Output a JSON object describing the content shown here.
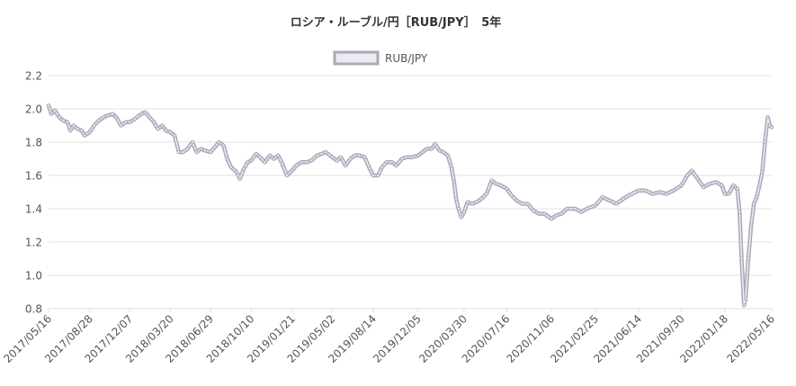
{
  "chart_data": {
    "type": "line",
    "title": "ロシア・ルーブル/円［RUB/JPY］　5年",
    "legend": {
      "position": "top-center",
      "entries": [
        "RUB/JPY"
      ]
    },
    "grid": true,
    "colors": {
      "line": "#a9a9b9",
      "line_fill": "#ecebf4",
      "grid": "#e0e0e0",
      "text": "#555555"
    },
    "xlim": [
      "2017/05/16",
      "2022/05/16"
    ],
    "ylim": [
      0.8,
      2.2
    ],
    "y_ticks": [
      "0.8",
      "1.0",
      "1.2",
      "1.4",
      "1.6",
      "1.8",
      "2.0",
      "2.2"
    ],
    "x_ticks": [
      "2017/05/16",
      "2017/08/28",
      "2017/12/07",
      "2018/03/20",
      "2018/06/29",
      "2018/10/10",
      "2019/01/21",
      "2019/05/02",
      "2019/08/14",
      "2019/12/05",
      "2020/03/30",
      "2020/07/16",
      "2020/11/06",
      "2021/02/25",
      "2021/06/14",
      "2021/09/30",
      "2022/01/18",
      "2022/05/16"
    ],
    "series": [
      {
        "name": "RUB/JPY",
        "points": [
          [
            "2017/05/16",
            2.02
          ],
          [
            "2017/05/23",
            1.97
          ],
          [
            "2017/06/01",
            1.99
          ],
          [
            "2017/06/12",
            1.95
          ],
          [
            "2017/06/22",
            1.93
          ],
          [
            "2017/07/03",
            1.92
          ],
          [
            "2017/07/10",
            1.87
          ],
          [
            "2017/07/18",
            1.9
          ],
          [
            "2017/07/28",
            1.88
          ],
          [
            "2017/08/07",
            1.87
          ],
          [
            "2017/08/15",
            1.84
          ],
          [
            "2017/08/28",
            1.86
          ],
          [
            "2017/09/08",
            1.9
          ],
          [
            "2017/09/20",
            1.93
          ],
          [
            "2017/10/02",
            1.95
          ],
          [
            "2017/10/13",
            1.96
          ],
          [
            "2017/10/25",
            1.97
          ],
          [
            "2017/11/03",
            1.95
          ],
          [
            "2017/11/15",
            1.9
          ],
          [
            "2017/11/27",
            1.92
          ],
          [
            "2017/12/07",
            1.92
          ],
          [
            "2017/12/20",
            1.94
          ],
          [
            "2018/01/05",
            1.97
          ],
          [
            "2018/01/15",
            1.98
          ],
          [
            "2018/01/26",
            1.95
          ],
          [
            "2018/02/06",
            1.92
          ],
          [
            "2018/02/16",
            1.88
          ],
          [
            "2018/02/27",
            1.9
          ],
          [
            "2018/03/08",
            1.87
          ],
          [
            "2018/03/20",
            1.86
          ],
          [
            "2018/03/30",
            1.84
          ],
          [
            "2018/04/10",
            1.74
          ],
          [
            "2018/04/20",
            1.74
          ],
          [
            "2018/05/02",
            1.76
          ],
          [
            "2018/05/14",
            1.8
          ],
          [
            "2018/05/25",
            1.74
          ],
          [
            "2018/06/05",
            1.76
          ],
          [
            "2018/06/15",
            1.75
          ],
          [
            "2018/06/29",
            1.74
          ],
          [
            "2018/07/10",
            1.77
          ],
          [
            "2018/07/20",
            1.8
          ],
          [
            "2018/08/01",
            1.78
          ],
          [
            "2018/08/10",
            1.7
          ],
          [
            "2018/08/20",
            1.65
          ],
          [
            "2018/09/03",
            1.62
          ],
          [
            "2018/09/11",
            1.58
          ],
          [
            "2018/09/21",
            1.64
          ],
          [
            "2018/10/01",
            1.68
          ],
          [
            "2018/10/10",
            1.69
          ],
          [
            "2018/10/22",
            1.73
          ],
          [
            "2018/11/01",
            1.71
          ],
          [
            "2018/11/13",
            1.68
          ],
          [
            "2018/11/26",
            1.72
          ],
          [
            "2018/12/06",
            1.7
          ],
          [
            "2018/12/17",
            1.72
          ],
          [
            "2018/12/27",
            1.67
          ],
          [
            "2019/01/08",
            1.6
          ],
          [
            "2019/01/21",
            1.63
          ],
          [
            "2019/02/01",
            1.66
          ],
          [
            "2019/02/14",
            1.68
          ],
          [
            "2019/02/27",
            1.68
          ],
          [
            "2019/03/11",
            1.69
          ],
          [
            "2019/03/25",
            1.72
          ],
          [
            "2019/04/05",
            1.73
          ],
          [
            "2019/04/16",
            1.74
          ],
          [
            "2019/05/02",
            1.71
          ],
          [
            "2019/05/14",
            1.69
          ],
          [
            "2019/05/24",
            1.71
          ],
          [
            "2019/06/05",
            1.66
          ],
          [
            "2019/06/17",
            1.7
          ],
          [
            "2019/06/28",
            1.72
          ],
          [
            "2019/07/10",
            1.72
          ],
          [
            "2019/07/23",
            1.71
          ],
          [
            "2019/08/05",
            1.64
          ],
          [
            "2019/08/14",
            1.6
          ],
          [
            "2019/08/26",
            1.6
          ],
          [
            "2019/09/05",
            1.65
          ],
          [
            "2019/09/17",
            1.68
          ],
          [
            "2019/09/30",
            1.68
          ],
          [
            "2019/10/11",
            1.66
          ],
          [
            "2019/10/25",
            1.7
          ],
          [
            "2019/11/06",
            1.71
          ],
          [
            "2019/11/19",
            1.71
          ],
          [
            "2019/12/05",
            1.72
          ],
          [
            "2019/12/16",
            1.74
          ],
          [
            "2019/12/27",
            1.76
          ],
          [
            "2020/01/08",
            1.76
          ],
          [
            "2020/01/17",
            1.79
          ],
          [
            "2020/01/28",
            1.75
          ],
          [
            "2020/02/07",
            1.74
          ],
          [
            "2020/02/18",
            1.72
          ],
          [
            "2020/02/26",
            1.66
          ],
          [
            "2020/03/05",
            1.56
          ],
          [
            "2020/03/10",
            1.46
          ],
          [
            "2020/03/16",
            1.4
          ],
          [
            "2020/03/23",
            1.35
          ],
          [
            "2020/03/30",
            1.38
          ],
          [
            "2020/04/08",
            1.44
          ],
          [
            "2020/04/20",
            1.43
          ],
          [
            "2020/05/01",
            1.44
          ],
          [
            "2020/05/13",
            1.46
          ],
          [
            "2020/05/26",
            1.49
          ],
          [
            "2020/06/08",
            1.57
          ],
          [
            "2020/06/19",
            1.55
          ],
          [
            "2020/07/01",
            1.54
          ],
          [
            "2020/07/16",
            1.52
          ],
          [
            "2020/07/28",
            1.48
          ],
          [
            "2020/08/10",
            1.45
          ],
          [
            "2020/08/24",
            1.43
          ],
          [
            "2020/09/07",
            1.43
          ],
          [
            "2020/09/21",
            1.39
          ],
          [
            "2020/10/05",
            1.37
          ],
          [
            "2020/10/19",
            1.37
          ],
          [
            "2020/11/06",
            1.34
          ],
          [
            "2020/11/18",
            1.36
          ],
          [
            "2020/12/01",
            1.37
          ],
          [
            "2020/12/15",
            1.4
          ],
          [
            "2021/01/05",
            1.4
          ],
          [
            "2021/01/20",
            1.38
          ],
          [
            "2021/02/03",
            1.4
          ],
          [
            "2021/02/25",
            1.42
          ],
          [
            "2021/03/15",
            1.47
          ],
          [
            "2021/04/01",
            1.45
          ],
          [
            "2021/04/19",
            1.43
          ],
          [
            "2021/05/06",
            1.46
          ],
          [
            "2021/05/20",
            1.48
          ],
          [
            "2021/06/14",
            1.51
          ],
          [
            "2021/07/01",
            1.51
          ],
          [
            "2021/07/19",
            1.49
          ],
          [
            "2021/08/05",
            1.5
          ],
          [
            "2021/08/23",
            1.49
          ],
          [
            "2021/09/10",
            1.51
          ],
          [
            "2021/09/30",
            1.54
          ],
          [
            "2021/10/15",
            1.6
          ],
          [
            "2021/10/26",
            1.63
          ],
          [
            "2021/11/10",
            1.58
          ],
          [
            "2021/11/25",
            1.53
          ],
          [
            "2021/12/10",
            1.55
          ],
          [
            "2021/12/27",
            1.56
          ],
          [
            "2022/01/10",
            1.54
          ],
          [
            "2022/01/18",
            1.49
          ],
          [
            "2022/01/28",
            1.49
          ],
          [
            "2022/02/08",
            1.54
          ],
          [
            "2022/02/18",
            1.52
          ],
          [
            "2022/02/24",
            1.38
          ],
          [
            "2022/03/01",
            1.1
          ],
          [
            "2022/03/07",
            0.82
          ],
          [
            "2022/03/11",
            0.86
          ],
          [
            "2022/03/18",
            1.1
          ],
          [
            "2022/03/25",
            1.3
          ],
          [
            "2022/04/01",
            1.43
          ],
          [
            "2022/04/08",
            1.47
          ],
          [
            "2022/04/15",
            1.54
          ],
          [
            "2022/04/22",
            1.62
          ],
          [
            "2022/04/29",
            1.8
          ],
          [
            "2022/05/06",
            1.95
          ],
          [
            "2022/05/11",
            1.9
          ],
          [
            "2022/05/16",
            1.89
          ]
        ]
      }
    ]
  }
}
